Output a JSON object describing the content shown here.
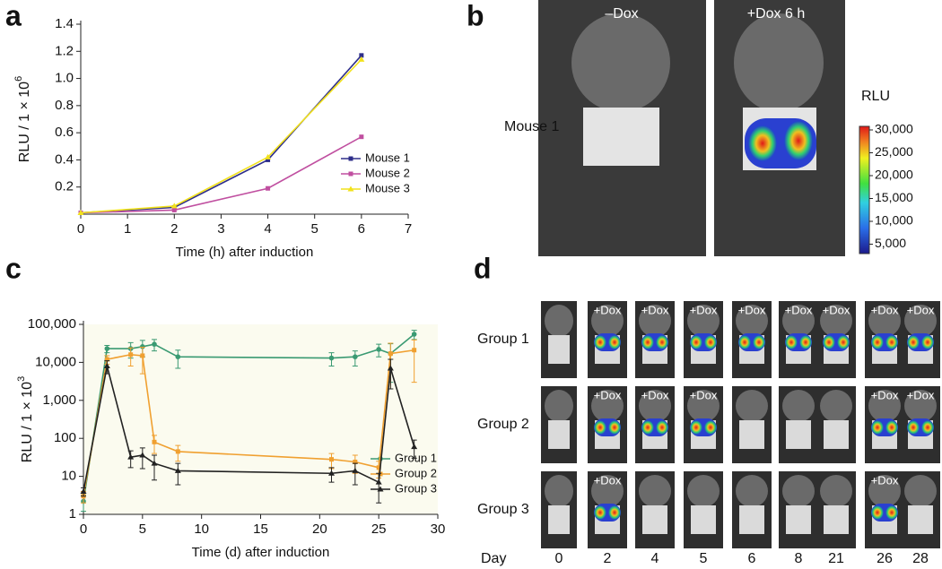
{
  "panel_letters": [
    "a",
    "b",
    "c",
    "d"
  ],
  "chart_data": [
    {
      "type": "line",
      "xlabel": "Time (h) after induction",
      "ylabel": "RLU / 1 × 10",
      "ylabel_exponent": "6",
      "x": [
        0,
        2,
        4,
        6
      ],
      "xlim": [
        0,
        7
      ],
      "xticks": [
        0,
        1,
        2,
        3,
        4,
        5,
        6,
        7
      ],
      "ylim": [
        0,
        1.4
      ],
      "yticks": [
        0.2,
        0.4,
        0.6,
        0.8,
        {
          "value": 1,
          "label": "1.0"
        },
        1.2,
        1.4
      ],
      "legend": "lower right",
      "series": [
        {
          "name": "Mouse 1",
          "color": "#2e2e8a",
          "marker": "square",
          "values": [
            0.01,
            0.05,
            0.4,
            1.17
          ]
        },
        {
          "name": "Mouse 2",
          "color": "#c04fa0",
          "marker": "square",
          "values": [
            0.01,
            0.03,
            0.19,
            0.57
          ]
        },
        {
          "name": "Mouse 3",
          "color": "#f2e21c",
          "marker": "triangle",
          "values": [
            0.01,
            0.06,
            0.42,
            1.14
          ]
        }
      ]
    },
    {
      "type": "line",
      "xlabel": "Time (d) after induction",
      "ylabel": "RLU / 1 × 10",
      "ylabel_exponent": "3",
      "x": [
        0,
        2,
        4,
        5,
        6,
        8,
        21,
        23,
        25,
        26,
        28
      ],
      "xlim": [
        0,
        30
      ],
      "xticks": [
        0,
        5,
        10,
        15,
        20,
        25,
        30
      ],
      "yscale": "log",
      "ylim": [
        1,
        100000
      ],
      "yticks": [
        1,
        10,
        100,
        {
          "value": 1000,
          "label": "1,000"
        },
        {
          "value": 10000,
          "label": "10,000"
        },
        {
          "value": 100000,
          "label": "100,000"
        }
      ],
      "legend": "lower right",
      "background": "#fbfbef",
      "series": [
        {
          "name": "Group 1",
          "color": "#3a9a72",
          "marker": "circle",
          "values": [
            2.2,
            23000,
            23000,
            26000,
            30000,
            14000,
            13000,
            14000,
            22000,
            17000,
            55000
          ],
          "errors": [
            1,
            5000,
            10000,
            12000,
            10000,
            7000,
            5000,
            6000,
            8000,
            14000,
            15000
          ]
        },
        {
          "name": "Group 2",
          "color": "#f0a030",
          "marker": "square",
          "values": [
            3,
            12000,
            16000,
            15000,
            80,
            45,
            28,
            24,
            17,
            17000,
            21000
          ],
          "errors": [
            1,
            3000,
            8000,
            10000,
            40,
            20,
            12,
            12,
            8,
            15000,
            18000
          ]
        },
        {
          "name": "Group 3",
          "color": "#222222",
          "marker": "triangle",
          "values": [
            4,
            8000,
            32,
            36,
            22,
            14,
            12,
            14,
            7,
            7000,
            60
          ],
          "errors": [
            1,
            3000,
            15,
            20,
            14,
            8,
            5,
            8,
            5,
            5000,
            30
          ]
        }
      ]
    }
  ],
  "panel_b": {
    "columns": [
      "–Dox",
      "+Dox 6 h"
    ],
    "row_label": "Mouse 1",
    "colorbar_label": "RLU",
    "colorbar_ticks": [
      "30,000",
      "25,000",
      "20,000",
      "15,000",
      "10,000",
      "5,000"
    ]
  },
  "panel_d": {
    "day_label": "Day",
    "days": [
      "0",
      "2",
      "4",
      "5",
      "6",
      "8",
      "21",
      "26",
      "28"
    ],
    "rows": [
      {
        "label": "Group 1",
        "cells": [
          null,
          "+Dox",
          "+Dox",
          "+Dox",
          "+Dox",
          "+Dox",
          "+Dox",
          "+Dox",
          "+Dox"
        ]
      },
      {
        "label": "Group 2",
        "cells": [
          null,
          "+Dox",
          "+Dox",
          "+Dox",
          null,
          null,
          null,
          "+Dox",
          "+Dox"
        ]
      },
      {
        "label": "Group 3",
        "cells": [
          null,
          "+Dox",
          null,
          null,
          null,
          null,
          null,
          "+Dox",
          null
        ]
      }
    ]
  }
}
